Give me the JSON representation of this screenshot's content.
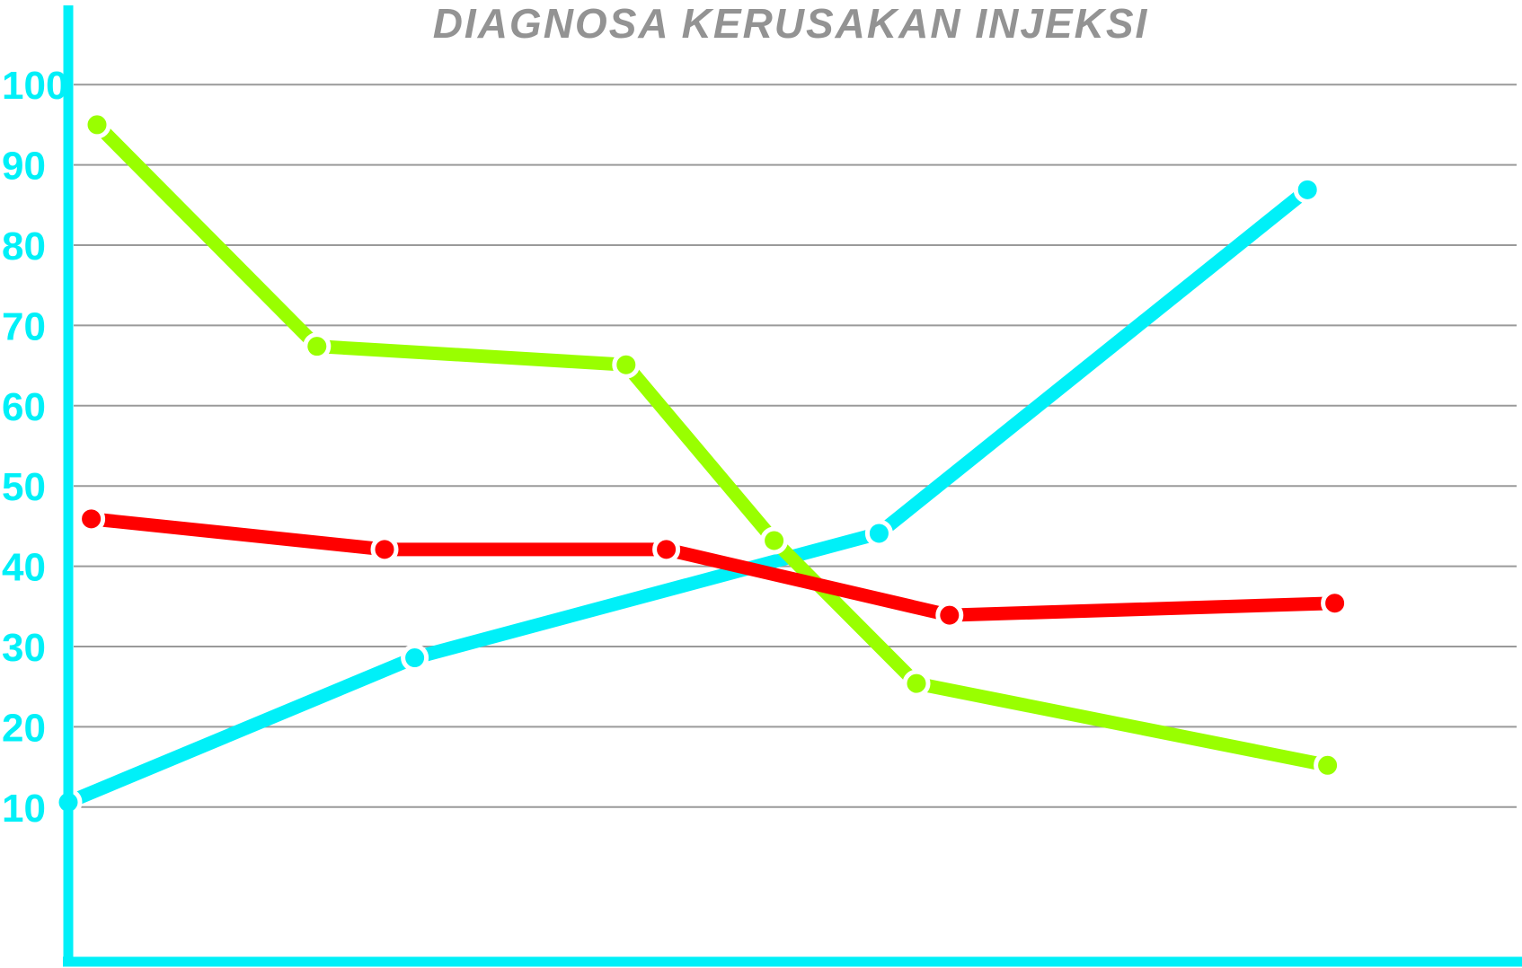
{
  "chart_data": {
    "type": "line",
    "title": "DIAGNOSA KERUSAKAN INJEKSI",
    "xlabel": "",
    "ylabel": "",
    "ylim": [
      0,
      100
    ],
    "grid": true,
    "legend": "none",
    "y_ticks": [
      "10",
      "20",
      "30",
      "40",
      "50",
      "60",
      "70",
      "80",
      "90",
      "100"
    ],
    "series": [
      {
        "color": "#00f0f8",
        "points": [
          {
            "x": 0.0,
            "y": 10.6
          },
          {
            "x": 24.1,
            "y": 28.6
          },
          {
            "x": 56.4,
            "y": 44.1
          },
          {
            "x": 86.2,
            "y": 86.9
          }
        ]
      },
      {
        "color": "#99ff00",
        "points": [
          {
            "x": 2.0,
            "y": 95.0
          },
          {
            "x": 17.3,
            "y": 67.4
          },
          {
            "x": 38.8,
            "y": 65.1
          },
          {
            "x": 49.1,
            "y": 43.2
          },
          {
            "x": 59.0,
            "y": 25.4
          },
          {
            "x": 87.6,
            "y": 15.2
          }
        ]
      },
      {
        "color": "#ff0000",
        "points": [
          {
            "x": 1.6,
            "y": 45.9
          },
          {
            "x": 22.0,
            "y": 42.1
          },
          {
            "x": 41.6,
            "y": 42.1
          },
          {
            "x": 61.3,
            "y": 33.9
          },
          {
            "x": 88.1,
            "y": 35.4
          }
        ]
      }
    ]
  }
}
